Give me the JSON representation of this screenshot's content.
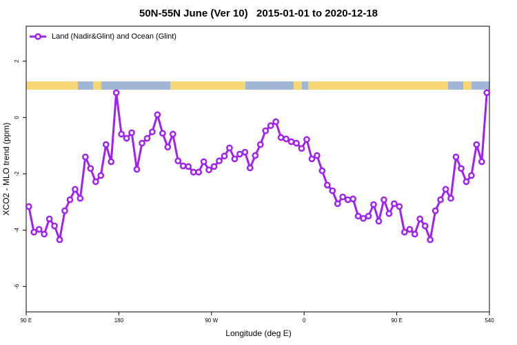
{
  "chart_data": {
    "type": "line",
    "title": "50N-55N June (Ver 10)   2015-01-01 to 2020-12-18",
    "xlabel": "Longitude (deg E)",
    "ylabel": "XCO2 - MLO trend (ppm)",
    "xlim": [
      90,
      540
    ],
    "ylim": [
      -6.9,
      3.24
    ],
    "xticks": [
      {
        "value": 90,
        "label": "90 E"
      },
      180,
      {
        "value": 270,
        "label": "90 W"
      },
      {
        "value": 360,
        "label": "0"
      },
      {
        "value": 450,
        "label": "90 E"
      },
      540
    ],
    "yticks": [
      -6,
      -4,
      -2,
      0,
      2
    ],
    "legend": "top-left",
    "x": [
      92.5,
      97.5,
      102.5,
      107.5,
      112.5,
      117.5,
      122.5,
      127.5,
      132.5,
      137.5,
      142.5,
      147.5,
      152.5,
      157.5,
      162.5,
      167.5,
      172.5,
      177.5,
      182.5,
      187.5,
      192.5,
      197.5,
      202.5,
      207.5,
      212.5,
      217.5,
      222.5,
      227.5,
      232.5,
      237.5,
      242.5,
      247.5,
      252.5,
      257.5,
      262.5,
      267.5,
      272.5,
      277.5,
      282.5,
      287.5,
      292.5,
      297.5,
      302.5,
      307.5,
      312.5,
      317.5,
      322.5,
      327.5,
      332.5,
      337.5,
      342.5,
      347.5,
      352.5,
      357.5,
      362.5,
      367.5,
      372.5,
      377.5,
      382.5,
      387.5,
      392.5,
      397.5,
      402.5,
      407.5,
      412.5,
      417.5,
      422.5,
      427.5,
      432.5,
      437.5,
      442.5,
      447.5,
      452.5,
      457.5,
      462.5,
      467.5,
      472.5,
      477.5,
      482.5,
      487.5,
      492.5,
      497.5,
      502.5,
      507.5,
      512.5,
      517.5,
      522.5,
      527.5,
      532.5,
      537.5
    ],
    "series": [
      {
        "name": "Land (Nadir&Glint) and Ocean (Glint)",
        "color": "#a020f0",
        "values": [
          -3.16,
          -4.07,
          -3.97,
          -4.14,
          -3.6,
          -3.85,
          -4.34,
          -3.31,
          -2.92,
          -2.55,
          -2.87,
          -1.4,
          -1.81,
          -2.28,
          -2.06,
          -0.96,
          -1.57,
          0.88,
          -0.59,
          -0.74,
          -0.54,
          -1.84,
          -0.91,
          -0.74,
          -0.51,
          0.1,
          -0.56,
          -1.05,
          -0.59,
          -1.54,
          -1.72,
          -1.74,
          -1.94,
          -1.94,
          -1.57,
          -1.86,
          -1.74,
          -1.54,
          -1.37,
          -1.08,
          -1.47,
          -1.3,
          -1.23,
          -1.79,
          -1.35,
          -0.96,
          -0.47,
          -0.29,
          -0.15,
          -0.71,
          -0.76,
          -0.86,
          -0.91,
          -1.1,
          -0.78,
          -1.47,
          -1.35,
          -1.89,
          -2.4,
          -2.6,
          -3.06,
          -2.82,
          -2.92,
          -2.89,
          -3.5,
          -3.58,
          -3.5,
          -3.09,
          -3.68,
          -2.92,
          -3.41,
          -3.06,
          -3.16,
          -4.07,
          -3.97,
          -4.14,
          -3.6,
          -3.85,
          -4.34,
          -3.31,
          -2.92,
          -2.55,
          -2.87,
          -1.4,
          -1.81,
          -2.28,
          -2.06,
          -0.96,
          -1.57,
          0.88
        ]
      }
    ]
  }
}
